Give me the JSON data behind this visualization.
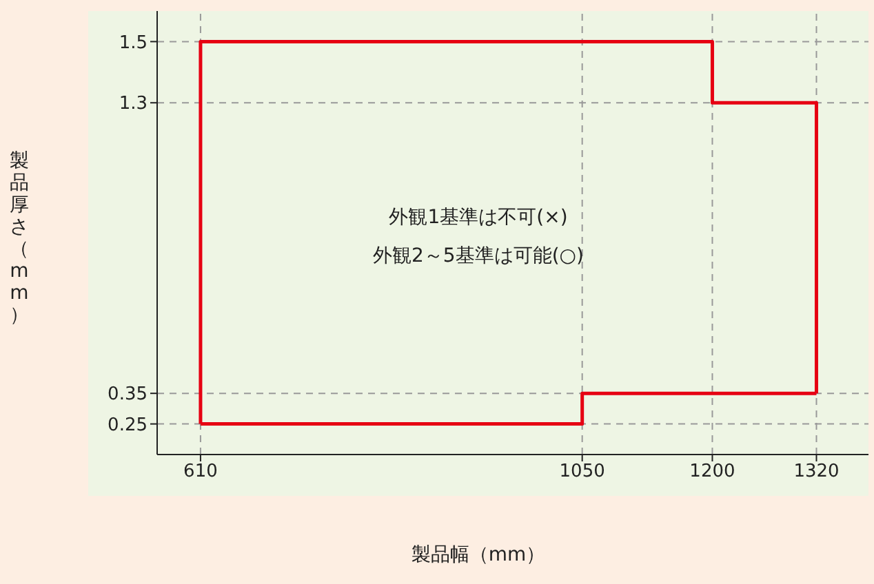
{
  "chart_data": {
    "type": "line",
    "xlabel": "製品幅（mm）",
    "ylabel": "製品厚さ（mm）",
    "annotations": [
      "外観1基準は不可(×)",
      "外観2～5基準は可能(○)"
    ],
    "series": [
      {
        "color": "#e60012",
        "x": [
          610,
          610,
          1200,
          1200,
          1320,
          1320
        ],
        "values": [
          0.25,
          1.5,
          1.5,
          1.3,
          1.3,
          0.35
        ]
      },
      {
        "color": "#e60012",
        "x": [
          610,
          1050,
          1050,
          1320
        ],
        "values": [
          0.25,
          0.25,
          0.35,
          0.35
        ]
      }
    ],
    "xlim": [
      560,
      1380
    ],
    "xticks": [
      610,
      1050,
      1200,
      1320
    ],
    "ylim": [
      0.15,
      1.6
    ],
    "yticks": [
      0.25,
      0.35,
      1.3,
      1.5
    ],
    "grid": true,
    "marker": "none",
    "line_style": "solid"
  }
}
